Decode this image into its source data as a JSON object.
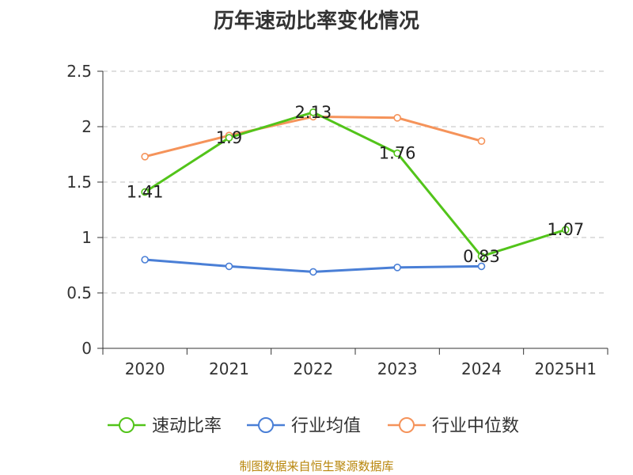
{
  "chart_data": {
    "type": "line",
    "title": "历年速动比率变化情况",
    "categories": [
      "2020",
      "2021",
      "2022",
      "2023",
      "2024",
      "2025H1"
    ],
    "ylim": [
      0,
      2.5
    ],
    "yticks": [
      "0",
      "0.5",
      "1",
      "1.5",
      "2",
      "2.5"
    ],
    "grid": true,
    "legend_position": "bottom",
    "series": [
      {
        "name": "速动比率",
        "color": "#52c41a",
        "values": [
          1.41,
          1.9,
          2.13,
          1.76,
          0.83,
          1.07
        ],
        "labels": [
          "1.41",
          "1.9",
          "2.13",
          "1.76",
          "0.83",
          "1.07"
        ]
      },
      {
        "name": "行业均值",
        "color": "#4a7fd6",
        "values": [
          0.8,
          0.74,
          0.69,
          0.73,
          0.74,
          null
        ]
      },
      {
        "name": "行业中位数",
        "color": "#f5935a",
        "values": [
          1.73,
          1.92,
          2.09,
          2.08,
          1.87,
          null
        ]
      }
    ]
  },
  "source": "制图数据来自恒生聚源数据库"
}
